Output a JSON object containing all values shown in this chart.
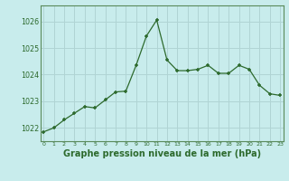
{
  "x": [
    0,
    1,
    2,
    3,
    4,
    5,
    6,
    7,
    8,
    9,
    10,
    11,
    12,
    13,
    14,
    15,
    16,
    17,
    18,
    19,
    20,
    21,
    22,
    23
  ],
  "y": [
    1021.85,
    1022.0,
    1022.3,
    1022.55,
    1022.8,
    1022.75,
    1023.05,
    1023.35,
    1023.38,
    1024.35,
    1025.45,
    1026.05,
    1024.55,
    1024.15,
    1024.15,
    1024.2,
    1024.35,
    1024.05,
    1024.05,
    1024.35,
    1024.2,
    1023.6,
    1023.28,
    1023.22
  ],
  "line_color": "#2d6a2d",
  "marker_color": "#2d6a2d",
  "bg_color": "#c8ecec",
  "grid_color": "#b0d4d4",
  "xlabel": "Graphe pression niveau de la mer (hPa)",
  "xlabel_color": "#2d6a2d",
  "tick_color": "#2d6a2d",
  "axis_color": "#5a8a5a",
  "ylim": [
    1021.5,
    1026.6
  ],
  "yticks": [
    1022,
    1023,
    1024,
    1025,
    1026
  ],
  "xlim": [
    -0.3,
    23.3
  ],
  "xticks": [
    0,
    1,
    2,
    3,
    4,
    5,
    6,
    7,
    8,
    9,
    10,
    11,
    12,
    13,
    14,
    15,
    16,
    17,
    18,
    19,
    20,
    21,
    22,
    23
  ],
  "xtick_labels": [
    "0",
    "1",
    "2",
    "3",
    "4",
    "5",
    "6",
    "7",
    "8",
    "9",
    "10",
    "11",
    "12",
    "13",
    "14",
    "15",
    "16",
    "17",
    "18",
    "19",
    "20",
    "21",
    "22",
    "23"
  ],
  "xlabel_fontsize": 7.0,
  "ytick_fontsize": 5.8,
  "xtick_fontsize": 4.5
}
